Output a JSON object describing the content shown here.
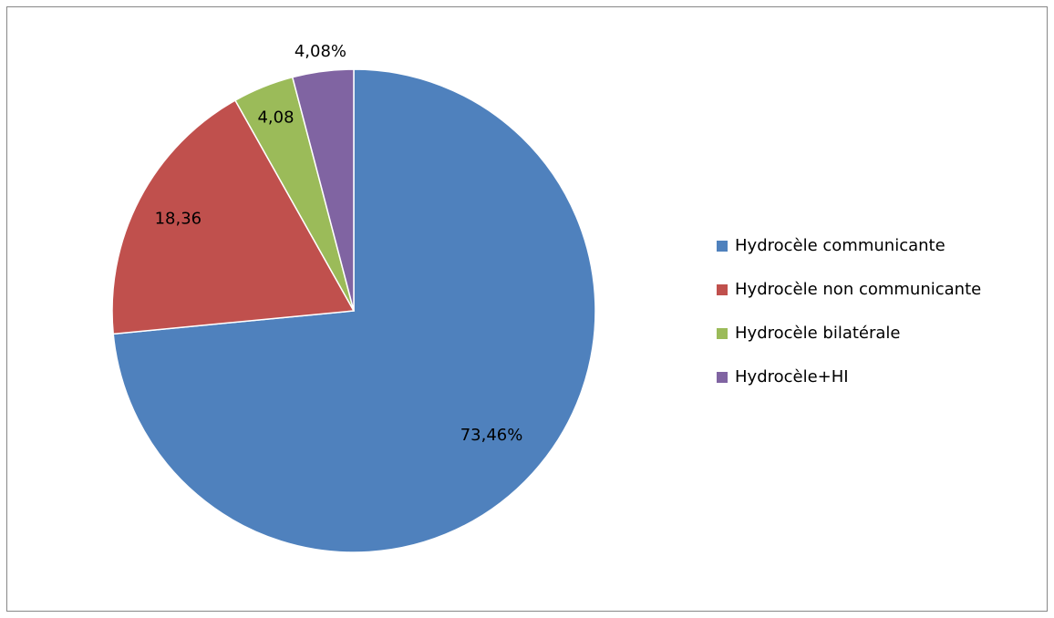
{
  "chart_data": {
    "type": "pie",
    "categories": [
      "Hydrocèle communicante",
      "Hydrocèle non communicante",
      "Hydrocèle bilatérale",
      "Hydrocèle+HI"
    ],
    "values": [
      73.46,
      18.36,
      4.08,
      4.08
    ],
    "value_labels": [
      "73,46%",
      "18,36",
      "4,08",
      "4,08%"
    ],
    "colors": [
      "#4f81bd",
      "#c0504d",
      "#9bbb59",
      "#8064a2"
    ],
    "legend": "right"
  }
}
